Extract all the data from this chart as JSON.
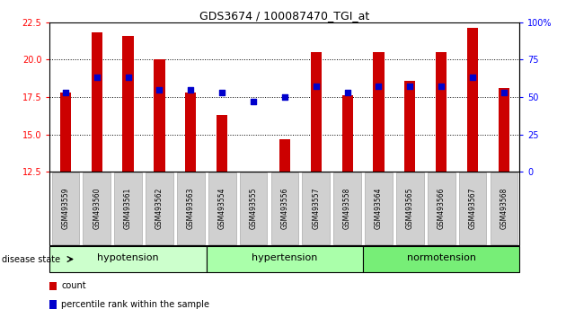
{
  "title": "GDS3674 / 100087470_TGI_at",
  "samples": [
    "GSM493559",
    "GSM493560",
    "GSM493561",
    "GSM493562",
    "GSM493563",
    "GSM493554",
    "GSM493555",
    "GSM493556",
    "GSM493557",
    "GSM493558",
    "GSM493564",
    "GSM493565",
    "GSM493566",
    "GSM493567",
    "GSM493568"
  ],
  "counts": [
    17.8,
    21.8,
    21.6,
    20.0,
    17.8,
    16.3,
    12.5,
    14.7,
    20.5,
    17.6,
    20.5,
    18.6,
    20.5,
    22.1,
    18.1
  ],
  "percentiles": [
    53,
    63,
    63,
    55,
    55,
    53,
    47,
    50,
    57,
    53,
    57,
    57,
    57,
    63,
    53
  ],
  "ylim_left": [
    12.5,
    22.5
  ],
  "ylim_right": [
    0,
    100
  ],
  "yticks_left": [
    12.5,
    15.0,
    17.5,
    20.0,
    22.5
  ],
  "yticks_right": [
    0,
    25,
    50,
    75,
    100
  ],
  "bar_color": "#cc0000",
  "dot_color": "#0000cc",
  "groups": [
    {
      "label": "hypotension",
      "start": 0,
      "end": 5,
      "color": "#ccffcc"
    },
    {
      "label": "hypertension",
      "start": 5,
      "end": 10,
      "color": "#aaffaa"
    },
    {
      "label": "normotension",
      "start": 10,
      "end": 15,
      "color": "#77ee77"
    }
  ],
  "bar_width": 0.35,
  "fig_bg": "#ffffff",
  "axis_bg": "#ffffff",
  "xlabel_box_color": "#d0d0d0",
  "xlabel_box_edge": "#aaaaaa"
}
